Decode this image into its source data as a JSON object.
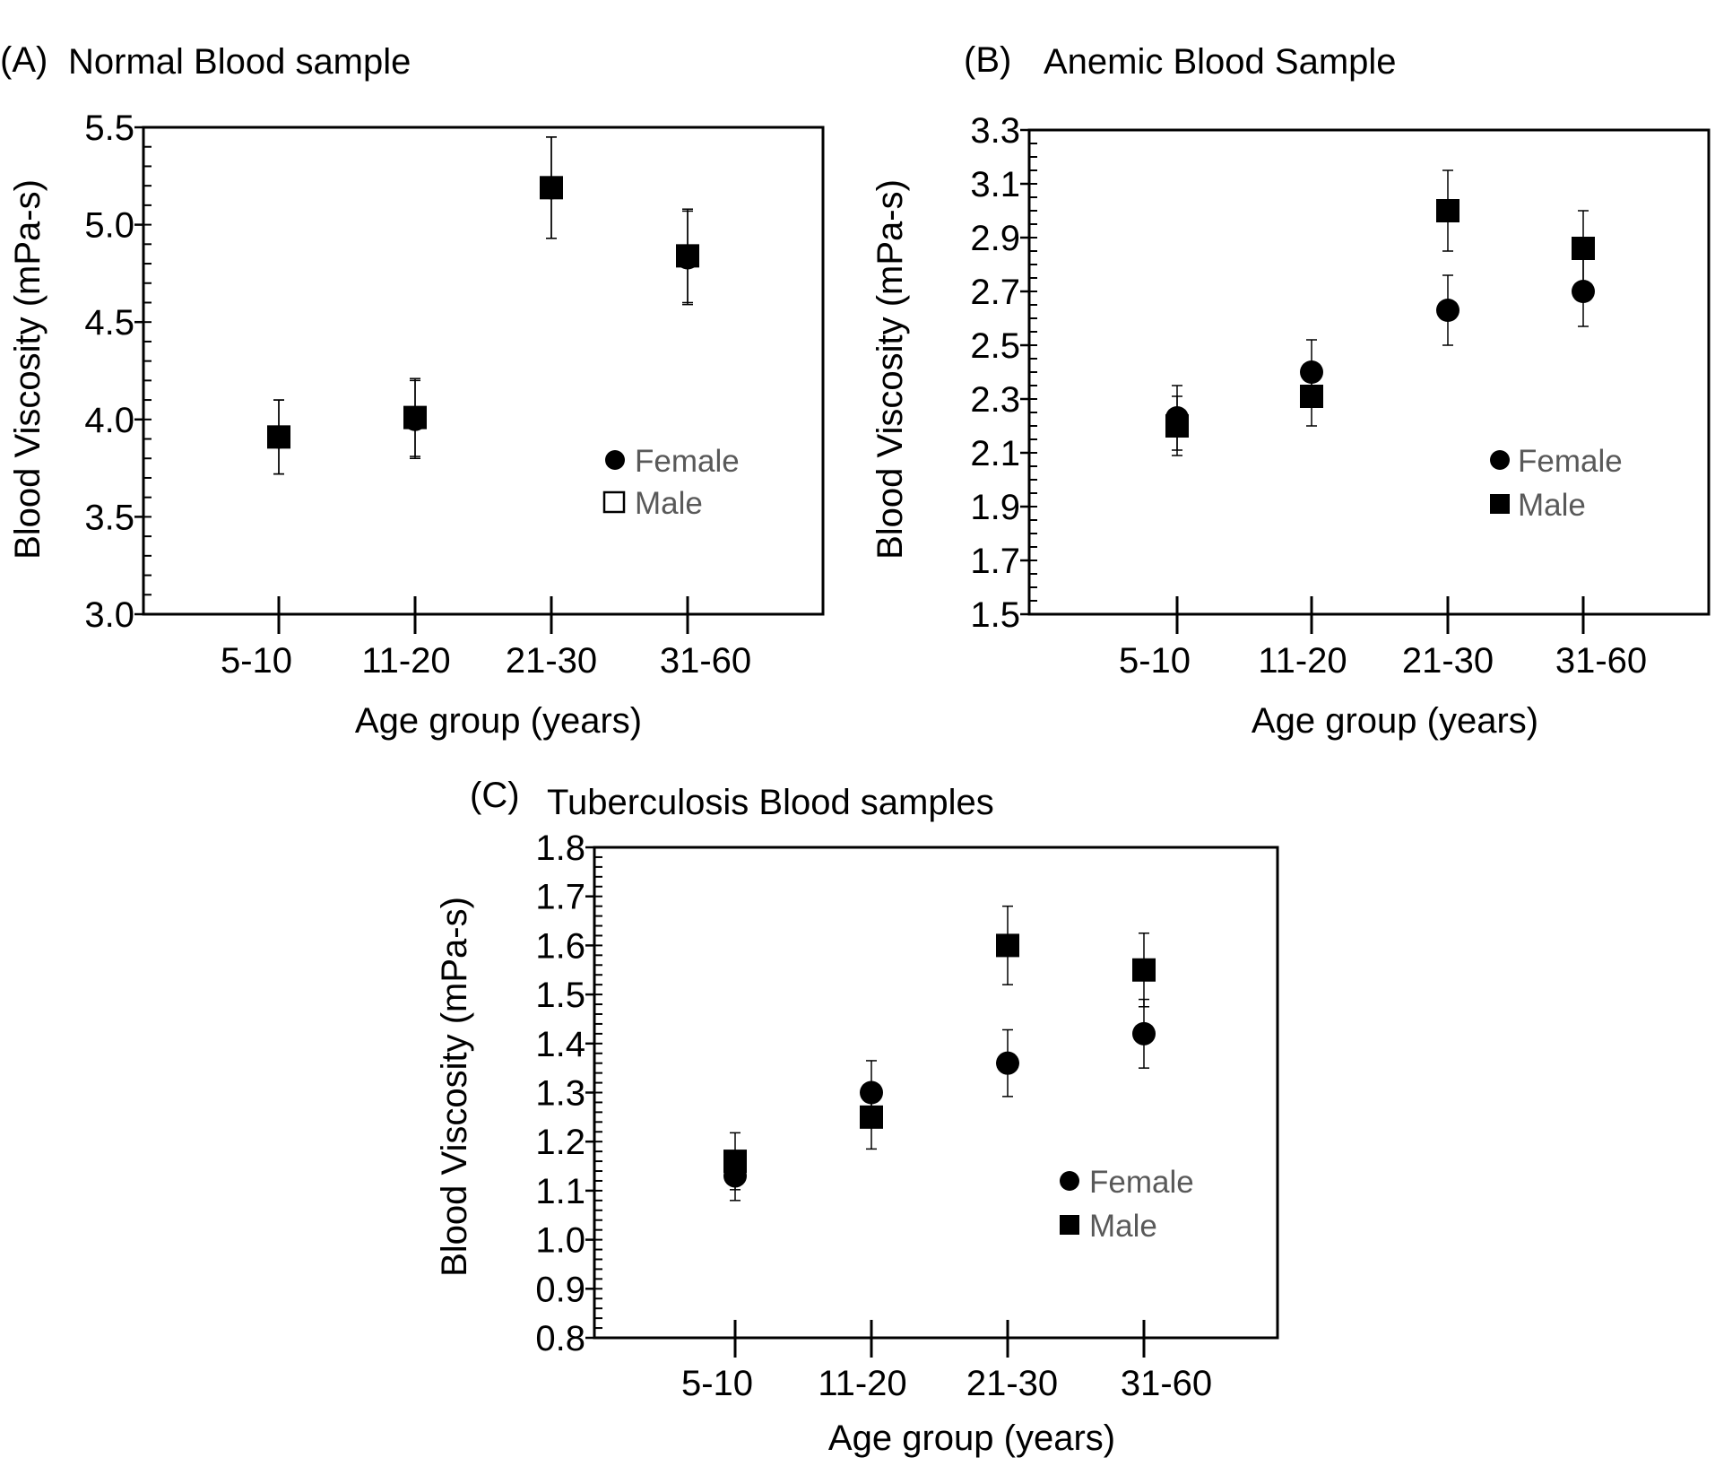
{
  "chart_data": [
    {
      "type": "scatter",
      "panel_label": "(A)",
      "title": "Normal Blood sample",
      "xlabel": "Age group (years)",
      "ylabel": "Blood Viscosity (mPa-s)",
      "categories": [
        "5-10",
        "11-20",
        "21-30",
        "31-60"
      ],
      "ylim": [
        3.0,
        5.5
      ],
      "yticks": [
        "3.0",
        "3.5",
        "4.0",
        "4.5",
        "5.0",
        "5.5"
      ],
      "minor_step": 0.1,
      "legend_position": "right-middle",
      "series": [
        {
          "name": "Female",
          "marker": "circle",
          "values": [
            3.91,
            4.0,
            5.19,
            4.83
          ],
          "errors": [
            0.19,
            0.2,
            0.26,
            0.24
          ]
        },
        {
          "name": "Male",
          "marker": "square",
          "legend_marker": "open-square",
          "values": [
            3.91,
            4.01,
            5.19,
            4.84
          ],
          "errors": [
            0.19,
            0.2,
            0.26,
            0.24
          ]
        }
      ]
    },
    {
      "type": "scatter",
      "panel_label": "(B)",
      "title": "Anemic Blood Sample",
      "xlabel": "Age group (years)",
      "ylabel": "Blood Viscosity (mPa-s)",
      "categories": [
        "5-10",
        "11-20",
        "21-30",
        "31-60"
      ],
      "ylim": [
        1.5,
        3.3
      ],
      "yticks": [
        "1.5",
        "1.7",
        "1.9",
        "2.1",
        "2.3",
        "2.5",
        "2.7",
        "2.9",
        "3.1",
        "3.3"
      ],
      "minor_step": 0.05,
      "legend_position": "right-middle",
      "series": [
        {
          "name": "Female",
          "marker": "circle",
          "values": [
            2.23,
            2.4,
            2.63,
            2.7
          ],
          "errors": [
            0.12,
            0.12,
            0.13,
            0.13
          ]
        },
        {
          "name": "Male",
          "marker": "square",
          "values": [
            2.2,
            2.31,
            3.0,
            2.86
          ],
          "errors": [
            0.11,
            0.11,
            0.15,
            0.14
          ]
        }
      ]
    },
    {
      "type": "scatter",
      "panel_label": "(C)",
      "title": "Tuberculosis Blood samples",
      "xlabel": "Age group (years)",
      "ylabel": "Blood Viscosity (mPa-s)",
      "categories": [
        "5-10",
        "11-20",
        "21-30",
        "31-60"
      ],
      "ylim": [
        0.8,
        1.8
      ],
      "yticks": [
        "0.8",
        "0.9",
        "1.0",
        "1.1",
        "1.2",
        "1.3",
        "1.4",
        "1.5",
        "1.6",
        "1.7",
        "1.8"
      ],
      "minor_step": 0.02,
      "legend_position": "right-middle",
      "series": [
        {
          "name": "Female",
          "marker": "circle",
          "values": [
            1.13,
            1.3,
            1.36,
            1.42
          ],
          "errors": [
            0.05,
            0.065,
            0.068,
            0.07
          ]
        },
        {
          "name": "Male",
          "marker": "square",
          "values": [
            1.16,
            1.25,
            1.6,
            1.55
          ],
          "errors": [
            0.058,
            0.065,
            0.08,
            0.075
          ]
        }
      ]
    }
  ]
}
